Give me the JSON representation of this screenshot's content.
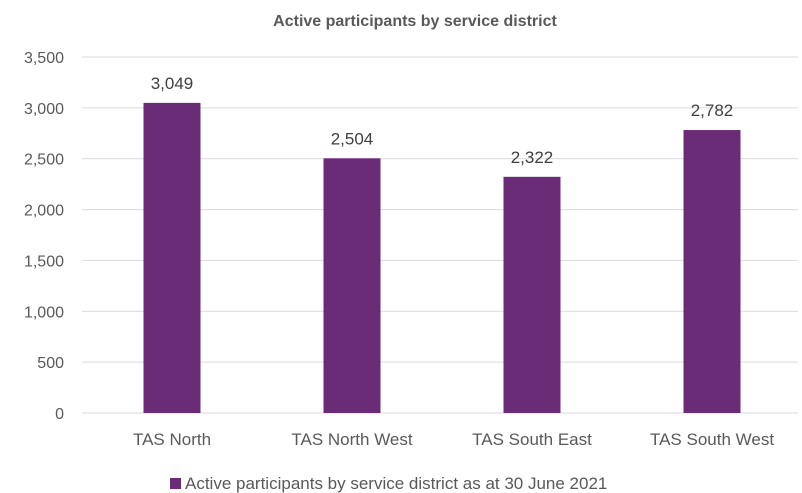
{
  "chart_data": {
    "type": "bar",
    "title": "Active participants by service district",
    "categories": [
      "TAS North",
      "TAS North West",
      "TAS South East",
      "TAS South West"
    ],
    "series": [
      {
        "name": "Active participants by service district as at 30 June 2021",
        "values": [
          3049,
          2504,
          2322,
          2782
        ],
        "data_labels": [
          "3,049",
          "2,504",
          "2,322",
          "2,782"
        ]
      }
    ],
    "ylim": [
      0,
      3500
    ],
    "yticks": [
      0,
      500,
      1000,
      1500,
      2000,
      2500,
      3000,
      3500
    ],
    "ytick_labels": [
      "0",
      "500",
      "1,000",
      "1,500",
      "2,000",
      "2,500",
      "3,000",
      "3,500"
    ],
    "grid": true,
    "legend_position": "bottom",
    "colors": {
      "bar": "#6A2C76",
      "grid": "#D9D9D9",
      "axis_text": "#595959"
    }
  }
}
